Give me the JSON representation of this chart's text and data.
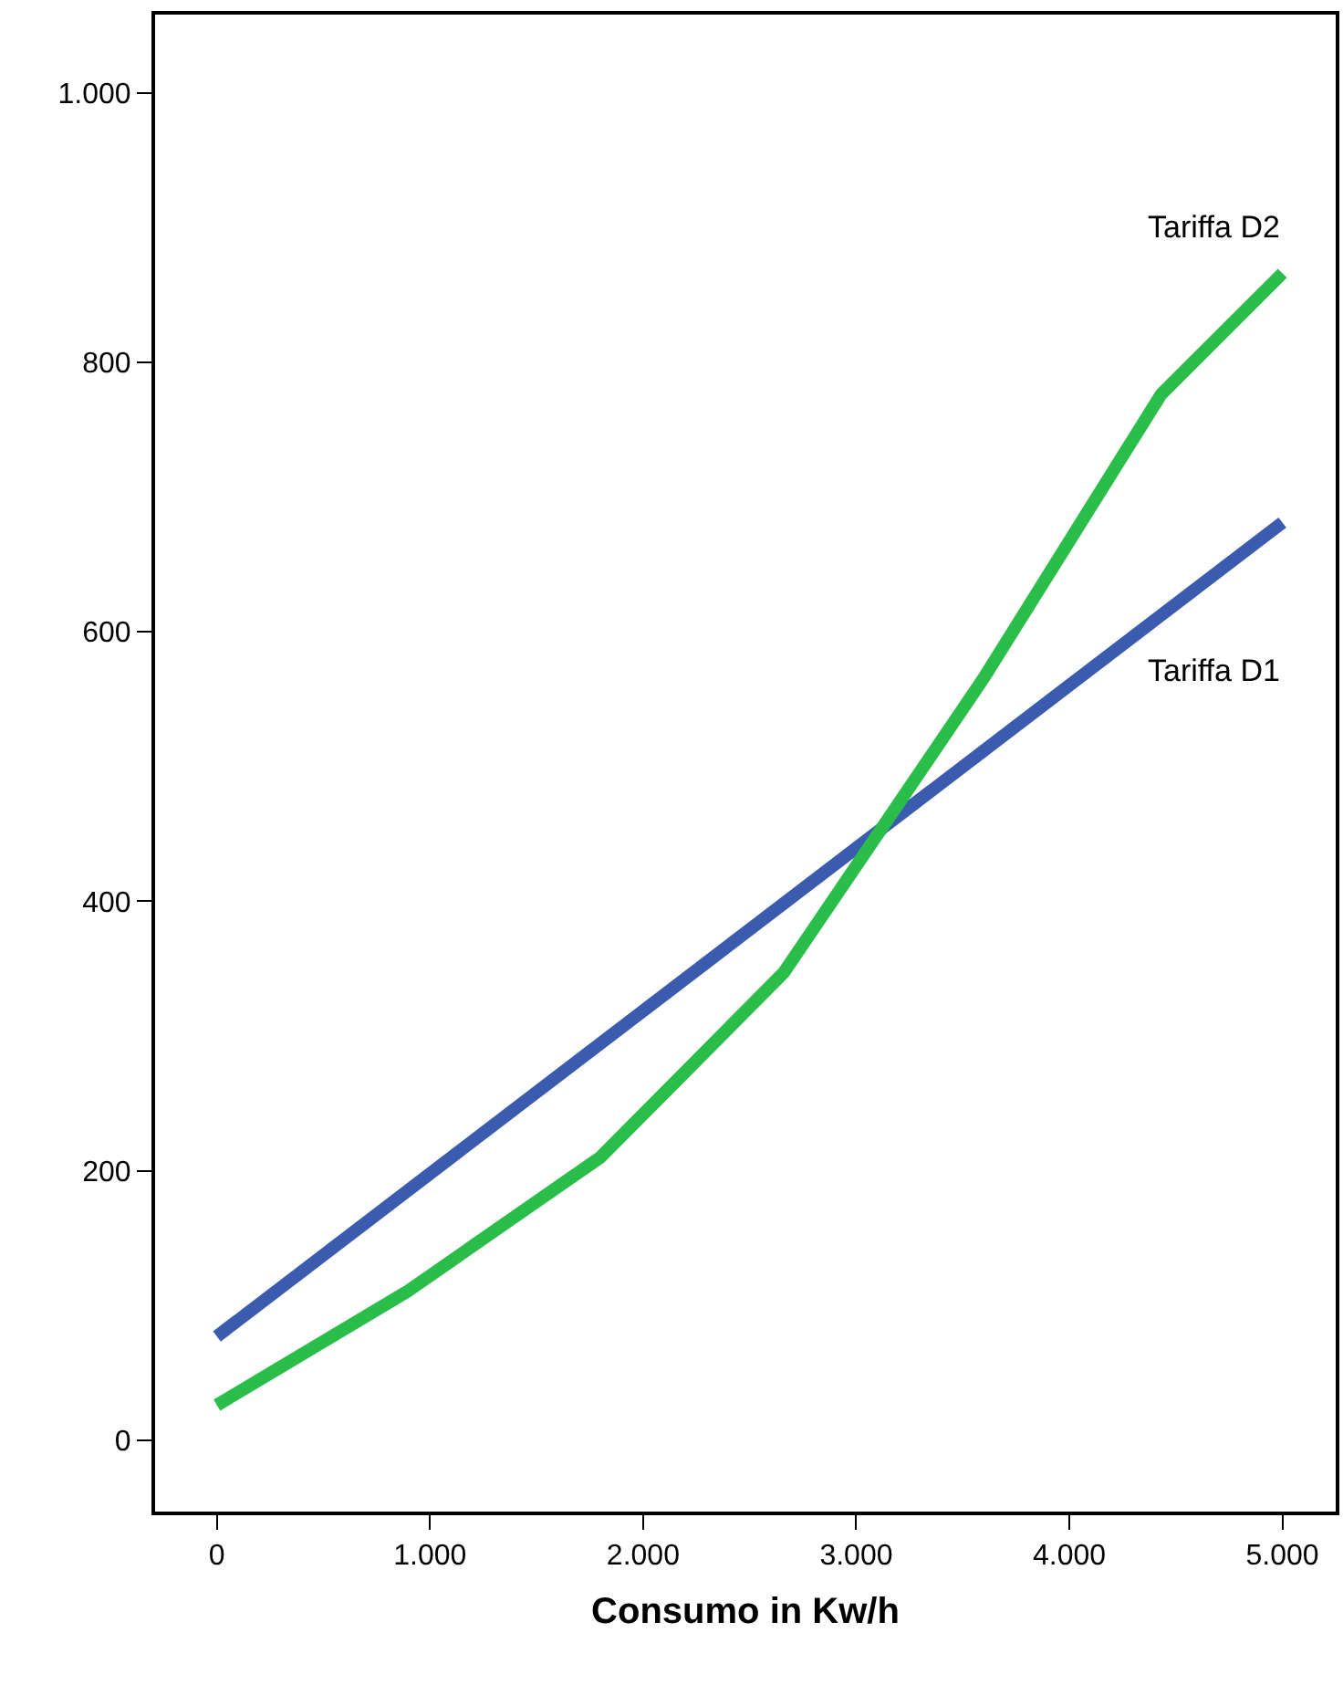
{
  "chart_data": {
    "type": "line",
    "xlabel": "Consumo in Kw/h",
    "xlim": [
      -290,
      5250
    ],
    "ylim": [
      -53,
      1058
    ],
    "xticks": [
      0,
      {
        "value": 1000,
        "label": "1.000"
      },
      {
        "value": 2000,
        "label": "2.000"
      },
      {
        "value": 3000,
        "label": "3.000"
      },
      {
        "value": 4000,
        "label": "4.000"
      },
      {
        "value": 5000,
        "label": "5.000"
      }
    ],
    "yticks": [
      0,
      200,
      400,
      600,
      800,
      {
        "value": 1000,
        "label": "1.000"
      }
    ],
    "legend": false,
    "marker": "none",
    "line_style": "solid",
    "series": [
      {
        "name": "Tariffa D1",
        "color": "#3b5bae",
        "x": [
          0,
          5000
        ],
        "values": [
          77,
          681
        ]
      },
      {
        "name": "Tariffa D2",
        "color": "#2bbd4a",
        "x": [
          0,
          890,
          1800,
          2660,
          3600,
          4430,
          5000
        ],
        "values": [
          26,
          110,
          210,
          347,
          566,
          776,
          866
        ]
      }
    ]
  }
}
